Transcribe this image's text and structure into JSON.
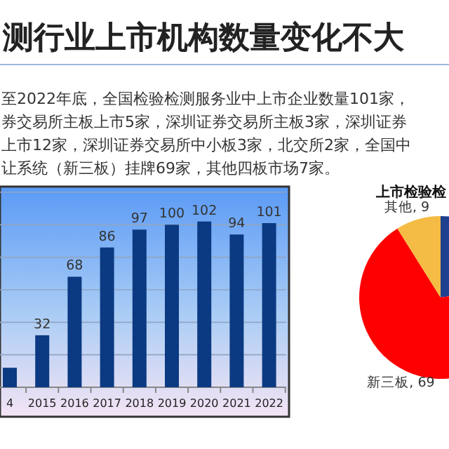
{
  "chart_data": [
    {
      "type": "bar",
      "title": "测行业上市机构数量变化不大",
      "annotations": [
        "至2022年底，全国检验检测服务业中上市企业数量101家，",
        "券交易所主板上市5家，深圳证券交易所主板3家，深圳证券",
        "上市12家，深圳证券交易所中小板3家，北交所2家，全国中",
        "让系统（新三板）挂牌69家，其他四板市场7家。"
      ],
      "categories": [
        "4",
        "2015",
        "2016",
        "2017",
        "2018",
        "2019",
        "2020",
        "2021",
        "2022"
      ],
      "values": [
        12,
        32,
        68,
        86,
        97,
        100,
        102,
        94,
        101
      ],
      "value_labels": [
        null,
        "32",
        "68",
        "86",
        "97",
        "100",
        "102",
        "94",
        "101"
      ],
      "color": "#0b3a82",
      "ylim": [
        0,
        120
      ],
      "yticks": [
        {
          "value": 0,
          "label": null
        },
        {
          "value": 20,
          "label": null
        },
        {
          "value": 40,
          "label": null
        },
        {
          "value": 60,
          "label": null
        },
        {
          "value": 80,
          "label": null
        },
        {
          "value": 100,
          "label": null
        },
        {
          "value": 120,
          "label": null
        }
      ],
      "grid": "y",
      "tick_labels": "x"
    },
    {
      "type": "pie",
      "title": "上市检验检",
      "categories": [
        null,
        "新三板",
        "其他"
      ],
      "values": [
        23,
        69,
        9
      ],
      "colors": [
        "#1f3f8f",
        "#ff0000",
        "#f4bc44"
      ],
      "value_labels": [
        null,
        ", 69",
        ", 9"
      ]
    }
  ]
}
